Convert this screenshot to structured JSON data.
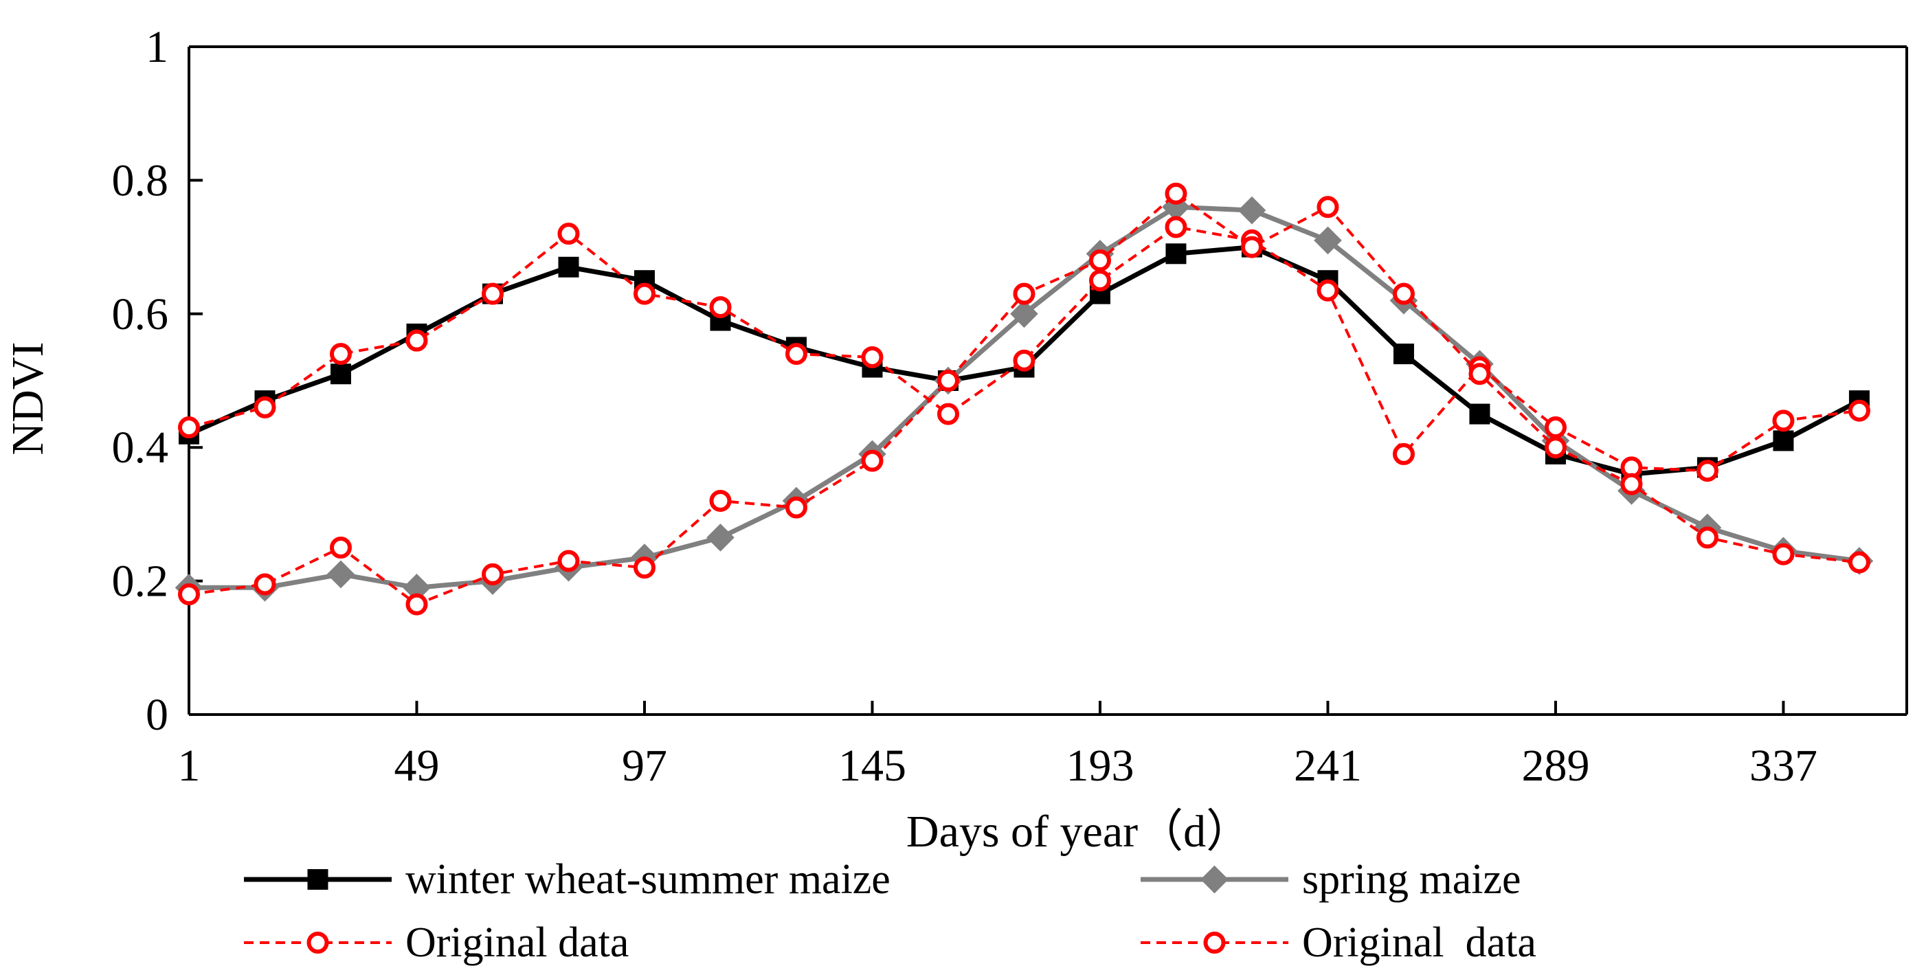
{
  "chart_data": {
    "type": "line",
    "title": "",
    "xlabel": "Days of year（d）",
    "ylabel": "NDVI",
    "xlim": [
      1,
      363
    ],
    "ylim": [
      0,
      1
    ],
    "x_ticks": [
      1,
      49,
      97,
      145,
      193,
      241,
      289,
      337
    ],
    "y_ticks": [
      0,
      0.2,
      0.4,
      0.6,
      0.8,
      1
    ],
    "y_tick_labels": [
      "0",
      "0.2",
      "0.4",
      "0.6",
      "0.8",
      "1"
    ],
    "grid": false,
    "legend_position": "bottom",
    "x": [
      1,
      17,
      33,
      49,
      65,
      81,
      97,
      113,
      129,
      145,
      161,
      177,
      193,
      209,
      225,
      241,
      257,
      273,
      289,
      305,
      321,
      337,
      353
    ],
    "series": [
      {
        "name": "winter wheat-summer maize",
        "color": "#000000",
        "style": "solid",
        "marker": "square",
        "values": [
          0.42,
          0.47,
          0.51,
          0.57,
          0.63,
          0.67,
          0.65,
          0.59,
          0.55,
          0.52,
          0.5,
          0.52,
          0.63,
          0.69,
          0.7,
          0.65,
          0.54,
          0.45,
          0.39,
          0.36,
          0.37,
          0.41,
          0.47
        ]
      },
      {
        "name": "spring maize",
        "color": "#808080",
        "style": "solid",
        "marker": "diamond",
        "values": [
          0.19,
          0.19,
          0.21,
          0.19,
          0.2,
          0.22,
          0.235,
          0.265,
          0.32,
          0.39,
          0.5,
          0.6,
          0.69,
          0.76,
          0.755,
          0.71,
          0.62,
          0.525,
          0.41,
          0.335,
          0.28,
          0.245,
          0.23
        ]
      },
      {
        "name": "Original data",
        "color": "#ff0000",
        "style": "dashed",
        "marker": "circle-open",
        "values": [
          0.43,
          0.46,
          0.54,
          0.56,
          0.63,
          0.72,
          0.63,
          0.61,
          0.54,
          0.535,
          0.45,
          0.53,
          0.65,
          0.73,
          0.71,
          0.635,
          0.39,
          0.52,
          0.43,
          0.37,
          0.365,
          0.44,
          0.455
        ]
      },
      {
        "name": "Original  data",
        "color": "#ff0000",
        "style": "dashed",
        "marker": "circle-open",
        "values": [
          0.18,
          0.195,
          0.25,
          0.165,
          0.21,
          0.23,
          0.22,
          0.32,
          0.31,
          0.38,
          0.5,
          0.63,
          0.68,
          0.78,
          0.7,
          0.76,
          0.63,
          0.51,
          0.4,
          0.345,
          0.265,
          0.24,
          0.228
        ]
      }
    ]
  }
}
